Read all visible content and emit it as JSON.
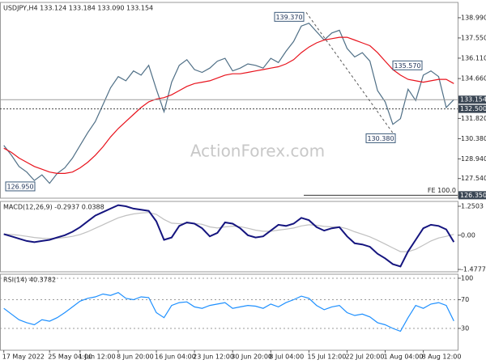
{
  "watermark": "ActionForex.com",
  "chart_data": [
    {
      "type": "line",
      "title": "USDJPY,H4  133.124 133.184 133.090 133.154",
      "ylim": [
        126.14,
        140.08
      ],
      "yticks": [
        {
          "value": 138.99,
          "label": "138.990"
        },
        {
          "value": 137.55,
          "label": "137.550"
        },
        {
          "value": 136.11,
          "label": "136.110"
        },
        {
          "value": 134.66,
          "label": "134.660"
        },
        {
          "value": 131.82,
          "label": "131.820"
        },
        {
          "value": 130.38,
          "label": "130.380"
        },
        {
          "value": 128.94,
          "label": "128.940"
        },
        {
          "value": 127.54,
          "label": "127.540"
        }
      ],
      "levels": [
        {
          "value": 133.154,
          "label": "133.154"
        },
        {
          "value": 132.5,
          "label": "132.500"
        },
        {
          "value": 126.35,
          "label": "126.350"
        }
      ],
      "fe_label": "FE 100.0",
      "annotations": [
        {
          "value": 139.37,
          "label": "139.370"
        },
        {
          "value": 135.57,
          "label": "135.570"
        },
        {
          "value": 130.38,
          "label": "130.380"
        },
        {
          "value": 126.95,
          "label": "126.950"
        }
      ],
      "grid": false,
      "series": [
        {
          "color": "#4f6f86",
          "values": [
            129.9,
            129.2,
            128.4,
            128.0,
            127.4,
            127.8,
            127.2,
            127.9,
            128.3,
            129.0,
            129.9,
            130.8,
            131.6,
            132.8,
            134.0,
            134.8,
            134.5,
            135.2,
            134.9,
            135.6,
            133.9,
            132.3,
            134.4,
            135.6,
            136.0,
            135.3,
            135.1,
            135.4,
            135.9,
            136.1,
            135.2,
            135.4,
            135.7,
            135.6,
            135.4,
            136.1,
            135.8,
            136.6,
            137.3,
            138.4,
            138.6,
            138.0,
            137.4,
            137.9,
            138.1,
            136.8,
            136.2,
            136.5,
            135.9,
            133.8,
            133.0,
            131.4,
            131.8,
            133.9,
            133.1,
            134.9,
            135.2,
            134.8,
            132.6,
            133.154
          ]
        },
        {
          "color": "#e8121c",
          "values": [
            129.7,
            129.4,
            129.0,
            128.7,
            128.4,
            128.2,
            128.0,
            127.9,
            127.9,
            128.0,
            128.3,
            128.7,
            129.2,
            129.8,
            130.5,
            131.1,
            131.6,
            132.1,
            132.6,
            133.0,
            133.2,
            133.3,
            133.5,
            133.8,
            134.1,
            134.3,
            134.4,
            134.5,
            134.7,
            134.9,
            135.0,
            135.0,
            135.1,
            135.2,
            135.3,
            135.4,
            135.5,
            135.7,
            136.0,
            136.5,
            136.9,
            137.2,
            137.4,
            137.5,
            137.6,
            137.6,
            137.4,
            137.2,
            137.0,
            136.5,
            135.9,
            135.3,
            134.9,
            134.6,
            134.5,
            134.4,
            134.5,
            134.6,
            134.6,
            134.3
          ]
        }
      ]
    },
    {
      "type": "line",
      "title": "MACD(12,26,9) -0.2937 0.0388",
      "ylim": [
        -1.58,
        1.46
      ],
      "yticks": [
        1.2503,
        {
          "value": 0,
          "label": "0.00"
        },
        -1.4777
      ],
      "grid": false,
      "series": [
        {
          "color": "#c0c0c0",
          "values": [
            0.05,
            0.03,
            0.0,
            -0.05,
            -0.1,
            -0.13,
            -0.14,
            -0.13,
            -0.1,
            -0.05,
            0.03,
            0.15,
            0.3,
            0.45,
            0.6,
            0.75,
            0.85,
            0.92,
            0.96,
            0.98,
            0.9,
            0.68,
            0.52,
            0.5,
            0.51,
            0.51,
            0.47,
            0.36,
            0.31,
            0.36,
            0.39,
            0.37,
            0.3,
            0.22,
            0.17,
            0.17,
            0.22,
            0.26,
            0.31,
            0.4,
            0.45,
            0.43,
            0.38,
            0.36,
            0.36,
            0.28,
            0.15,
            0.04,
            -0.07,
            -0.22,
            -0.38,
            -0.55,
            -0.71,
            -0.71,
            -0.61,
            -0.43,
            -0.25,
            -0.12,
            -0.05,
            0.0388
          ]
        },
        {
          "color": "#15157f",
          "values": [
            0.05,
            -0.05,
            -0.15,
            -0.25,
            -0.3,
            -0.25,
            -0.2,
            -0.1,
            0.0,
            0.15,
            0.35,
            0.6,
            0.85,
            1.0,
            1.15,
            1.3,
            1.25,
            1.15,
            1.1,
            1.05,
            0.6,
            -0.2,
            -0.1,
            0.4,
            0.55,
            0.5,
            0.3,
            -0.05,
            0.1,
            0.55,
            0.5,
            0.3,
            0.0,
            -0.1,
            -0.05,
            0.2,
            0.45,
            0.4,
            0.5,
            0.75,
            0.65,
            0.35,
            0.2,
            0.3,
            0.35,
            -0.05,
            -0.35,
            -0.4,
            -0.5,
            -0.8,
            -1.0,
            -1.25,
            -1.35,
            -0.7,
            -0.2,
            0.3,
            0.45,
            0.4,
            0.25,
            -0.2937
          ]
        }
      ]
    },
    {
      "type": "line",
      "title": "RSI(14) 40.3782",
      "ylim": [
        -0.5,
        105.6
      ],
      "yticks": [
        100,
        70,
        30
      ],
      "grid": true,
      "categories": [
        "17 May 2022",
        null,
        null,
        null,
        null,
        null,
        "25 May 04:00",
        null,
        null,
        null,
        "1 Jun 12:00",
        null,
        null,
        null,
        null,
        "8 Jun 20:00",
        null,
        null,
        null,
        null,
        "16 Jun 04:00",
        null,
        null,
        null,
        null,
        "23 Jun 12:00",
        null,
        null,
        null,
        null,
        "30 Jun 20:00",
        null,
        null,
        null,
        null,
        "8 Jul 04:00",
        null,
        null,
        null,
        null,
        "15 Jul 12:00",
        null,
        null,
        null,
        null,
        "22 Jul 20:00",
        null,
        null,
        null,
        null,
        "1 Aug 04:00",
        null,
        null,
        null,
        null,
        "8 Aug 12:00",
        null,
        null,
        null,
        null
      ],
      "series": [
        {
          "color": "#1e90ff",
          "values": [
            58,
            50,
            42,
            38,
            35,
            42,
            40,
            45,
            52,
            60,
            68,
            72,
            74,
            78,
            76,
            80,
            72,
            70,
            74,
            73,
            52,
            45,
            62,
            66,
            67,
            60,
            58,
            62,
            64,
            66,
            58,
            60,
            62,
            61,
            58,
            64,
            60,
            66,
            70,
            75,
            72,
            62,
            56,
            60,
            62,
            52,
            48,
            50,
            46,
            38,
            35,
            30,
            26,
            45,
            62,
            58,
            64,
            66,
            62,
            40.3782
          ]
        }
      ]
    }
  ]
}
